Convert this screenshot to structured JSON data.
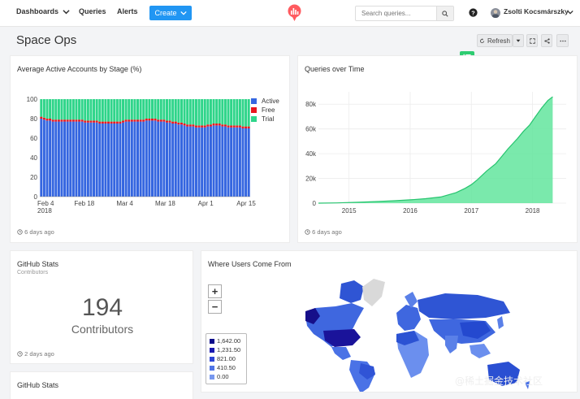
{
  "nav": {
    "dashboards": "Dashboards",
    "queries": "Queries",
    "alerts": "Alerts",
    "create": "Create"
  },
  "search": {
    "placeholder": "Search queries..."
  },
  "user": {
    "name": "Zsolti Kocsmárszky"
  },
  "page": {
    "title": "Space Ops",
    "refresh_label": "Refresh"
  },
  "translate_badge": "译",
  "watermark": "@稀土掘金技术社区",
  "colors": {
    "accent": "#2196f3",
    "active": "#3566e0",
    "free": "#e8171e",
    "trial": "#2fd58a",
    "area": "#63e59e"
  },
  "cards": {
    "stages": {
      "title": "Average Active Accounts by Stage (%)",
      "ago": "6 days ago"
    },
    "queries": {
      "title": "Queries over Time",
      "ago": "6 days ago"
    },
    "github1": {
      "title": "GitHub Stats",
      "subtitle": "Contributors",
      "value": "194",
      "label": "Contributors",
      "ago": "2 days ago"
    },
    "map": {
      "title": "Where Users Come From",
      "zoom_in": "+",
      "zoom_out": "−",
      "legend": [
        "1,642.00",
        "1,231.50",
        "821.00",
        "410.50",
        "0.00"
      ]
    },
    "github2": {
      "title": "GitHub Stats"
    }
  },
  "chart_data": [
    {
      "type": "bar",
      "title": "Average Active Accounts by Stage (%)",
      "stacked": true,
      "x_tick_labels": [
        "Feb 4\n2018",
        "Feb 18",
        "Mar 4",
        "Mar 18",
        "Apr 1",
        "Apr 15"
      ],
      "ylim": [
        0,
        100
      ],
      "y_ticks": [
        0,
        20,
        40,
        60,
        80,
        100
      ],
      "legend": [
        "Active",
        "Free",
        "Trial"
      ],
      "legend_position": "right",
      "series": [
        {
          "name": "Active",
          "values": [
            80,
            79,
            78,
            78,
            77,
            77,
            77,
            77,
            77,
            77,
            77,
            77,
            77,
            77,
            77,
            76,
            76,
            76,
            76,
            76,
            75,
            75,
            75,
            75,
            75,
            75,
            75,
            75,
            76,
            77,
            77,
            77,
            77,
            77,
            77,
            77,
            78,
            78,
            78,
            78,
            77,
            77,
            77,
            76,
            76,
            75,
            75,
            74,
            74,
            73,
            72,
            72,
            72,
            71,
            71,
            71,
            71,
            72,
            72,
            73,
            73,
            73,
            72,
            72,
            71,
            71,
            71,
            71,
            71,
            70,
            70,
            70
          ]
        },
        {
          "name": "Free",
          "values": [
            2,
            2,
            2,
            2,
            2,
            2,
            2,
            2,
            2,
            2,
            2,
            2,
            2,
            2,
            2,
            2,
            2,
            2,
            2,
            2,
            2,
            2,
            2,
            2,
            2,
            2,
            2,
            2,
            2,
            2,
            2,
            2,
            2,
            2,
            2,
            2,
            2,
            2,
            2,
            2,
            2,
            2,
            2,
            2,
            2,
            2,
            2,
            2,
            2,
            2,
            2,
            2,
            2,
            2,
            2,
            2,
            2,
            2,
            2,
            2,
            2,
            2,
            2,
            2,
            2,
            2,
            2,
            2,
            2,
            2,
            2,
            2
          ]
        },
        {
          "name": "Trial",
          "values": [
            18,
            19,
            20,
            20,
            21,
            21,
            21,
            21,
            21,
            21,
            21,
            21,
            21,
            21,
            21,
            22,
            22,
            22,
            22,
            22,
            23,
            23,
            23,
            23,
            23,
            23,
            23,
            23,
            22,
            21,
            21,
            21,
            21,
            21,
            21,
            21,
            20,
            20,
            20,
            20,
            21,
            21,
            21,
            22,
            22,
            23,
            23,
            24,
            24,
            25,
            26,
            26,
            26,
            27,
            27,
            27,
            27,
            26,
            26,
            25,
            25,
            25,
            26,
            26,
            27,
            27,
            27,
            27,
            27,
            28,
            28,
            28
          ]
        }
      ]
    },
    {
      "type": "area",
      "title": "Queries over Time",
      "x": [
        2014.5,
        2014.8,
        2015.0,
        2015.25,
        2015.5,
        2015.75,
        2016.0,
        2016.25,
        2016.5,
        2016.75,
        2016.9,
        2017.0,
        2017.1,
        2017.25,
        2017.4,
        2017.5,
        2017.6,
        2017.75,
        2017.85,
        2017.95,
        2018.05,
        2018.15,
        2018.25,
        2018.33
      ],
      "y": [
        0,
        200,
        500,
        900,
        1400,
        2000,
        2700,
        3600,
        5000,
        8500,
        12000,
        15000,
        19000,
        26000,
        32000,
        38000,
        44000,
        52000,
        58000,
        63000,
        70000,
        77000,
        83000,
        86000
      ],
      "x_ticks": [
        2015,
        2016,
        2017,
        2018
      ],
      "xlim": [
        2014.5,
        2018.55
      ],
      "y_ticks": [
        "0",
        "20k",
        "40k",
        "60k",
        "80k"
      ],
      "ylim": [
        0,
        90000
      ]
    }
  ]
}
